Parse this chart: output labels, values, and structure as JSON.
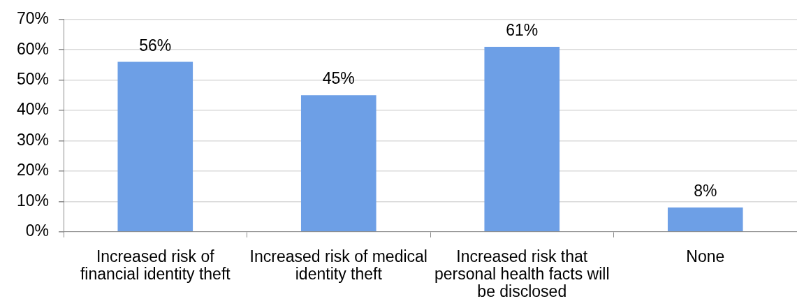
{
  "chart_data": {
    "type": "bar",
    "categories": [
      "Increased risk of financial identity theft",
      "Increased risk of medical identity theft",
      "Increased risk that personal health facts will be disclosed",
      "None"
    ],
    "values": [
      56,
      45,
      61,
      8
    ],
    "value_labels": [
      "56%",
      "45%",
      "61%",
      "8%"
    ],
    "color": "#6d9fe6",
    "ylim": [
      0,
      70
    ],
    "yticks": [
      {
        "value": 0,
        "label": "0%"
      },
      {
        "value": 10,
        "label": "10%"
      },
      {
        "value": 20,
        "label": "20%"
      },
      {
        "value": 30,
        "label": "30%"
      },
      {
        "value": 40,
        "label": "40%"
      },
      {
        "value": 50,
        "label": "50%"
      },
      {
        "value": 60,
        "label": "60%"
      },
      {
        "value": 70,
        "label": "70%"
      }
    ],
    "grid": "y"
  }
}
